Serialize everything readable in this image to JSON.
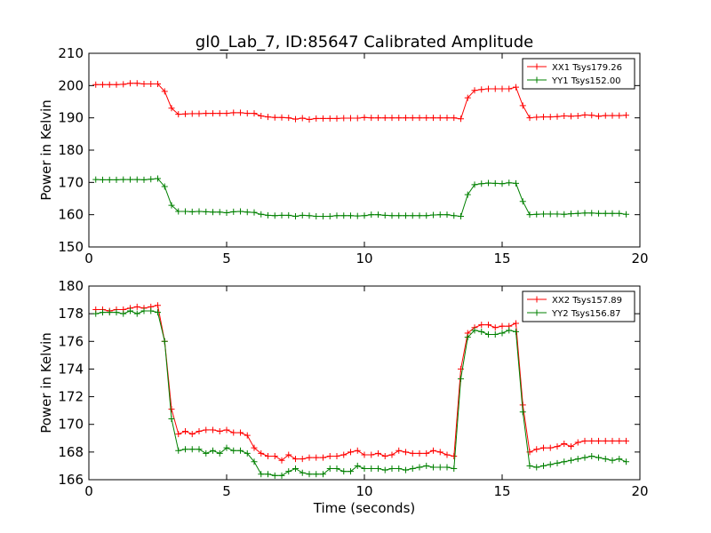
{
  "figure": {
    "title": "gl0_Lab_7, ID:85647 Calibrated Amplitude",
    "background": "#ffffff"
  },
  "chart_data": [
    {
      "type": "line",
      "ylabel": "Power in Kelvin",
      "xlabel": "",
      "xlim": [
        0,
        20
      ],
      "ylim": [
        150,
        210
      ],
      "xticks": [
        0,
        5,
        10,
        15,
        20
      ],
      "yticks": [
        150,
        160,
        170,
        180,
        190,
        200,
        210
      ],
      "x_tick_labels": [
        "0",
        "5",
        "10",
        "15",
        "20"
      ],
      "y_tick_labels": [
        "150",
        "160",
        "170",
        "180",
        "190",
        "200",
        "210"
      ],
      "grid": false,
      "legend_position": "top-right",
      "x": [
        0.25,
        0.5,
        0.75,
        1.0,
        1.25,
        1.5,
        1.75,
        2.0,
        2.25,
        2.5,
        2.75,
        3.0,
        3.25,
        3.5,
        3.75,
        4.0,
        4.25,
        4.5,
        4.75,
        5.0,
        5.25,
        5.5,
        5.75,
        6.0,
        6.25,
        6.5,
        6.75,
        7.0,
        7.25,
        7.5,
        7.75,
        8.0,
        8.25,
        8.5,
        8.75,
        9.0,
        9.25,
        9.5,
        9.75,
        10.0,
        10.25,
        10.5,
        10.75,
        11.0,
        11.25,
        11.5,
        11.75,
        12.0,
        12.25,
        12.5,
        12.75,
        13.0,
        13.25,
        13.5,
        13.75,
        14.0,
        14.25,
        14.5,
        14.75,
        15.0,
        15.25,
        15.5,
        15.75,
        16.0,
        16.25,
        16.5,
        16.75,
        17.0,
        17.25,
        17.5,
        17.75,
        18.0,
        18.25,
        18.5,
        18.75,
        19.0,
        19.25,
        19.5
      ],
      "series": [
        {
          "name": "XX1 Tsys179.26",
          "color": "#ff0000",
          "values": [
            200.3,
            200.3,
            200.3,
            200.3,
            200.4,
            200.7,
            200.7,
            200.5,
            200.5,
            200.5,
            198.2,
            193.0,
            191.1,
            191.2,
            191.3,
            191.3,
            191.4,
            191.4,
            191.4,
            191.4,
            191.6,
            191.6,
            191.4,
            191.4,
            190.6,
            190.3,
            190.1,
            190.1,
            190.0,
            189.6,
            189.9,
            189.5,
            189.8,
            189.8,
            189.8,
            189.8,
            189.9,
            189.9,
            189.9,
            190.1,
            190.0,
            190.0,
            190.0,
            190.0,
            190.0,
            190.0,
            190.0,
            190.0,
            190.0,
            190.0,
            190.0,
            190.0,
            190.0,
            189.7,
            196.2,
            198.5,
            198.8,
            199.0,
            199.0,
            199.0,
            199.0,
            199.5,
            193.8,
            190.0,
            190.2,
            190.3,
            190.3,
            190.4,
            190.6,
            190.5,
            190.6,
            190.9,
            190.8,
            190.5,
            190.7,
            190.7,
            190.7,
            190.8
          ]
        },
        {
          "name": "YY1 Tsys152.00",
          "color": "#008000",
          "values": [
            170.9,
            170.8,
            170.8,
            170.8,
            170.9,
            170.9,
            170.9,
            170.8,
            171.0,
            171.2,
            168.7,
            162.9,
            161.0,
            161.0,
            160.9,
            161.0,
            160.9,
            160.8,
            160.8,
            160.6,
            160.9,
            161.0,
            160.8,
            160.7,
            160.1,
            159.8,
            159.7,
            159.8,
            159.8,
            159.5,
            159.8,
            159.7,
            159.5,
            159.5,
            159.5,
            159.7,
            159.7,
            159.7,
            159.6,
            159.7,
            160.0,
            160.0,
            159.8,
            159.7,
            159.7,
            159.7,
            159.7,
            159.7,
            159.7,
            159.9,
            160.0,
            160.0,
            159.7,
            159.5,
            166.2,
            169.3,
            169.6,
            169.8,
            169.7,
            169.6,
            169.9,
            169.7,
            164.1,
            160.0,
            160.1,
            160.2,
            160.2,
            160.2,
            160.1,
            160.3,
            160.4,
            160.5,
            160.5,
            160.4,
            160.4,
            160.4,
            160.4,
            160.1
          ]
        }
      ]
    },
    {
      "type": "line",
      "ylabel": "Power in Kelvin",
      "xlabel": "Time (seconds)",
      "xlim": [
        0,
        20
      ],
      "ylim": [
        166,
        180
      ],
      "xticks": [
        0,
        5,
        10,
        15,
        20
      ],
      "yticks": [
        166,
        168,
        170,
        172,
        174,
        176,
        178,
        180
      ],
      "x_tick_labels": [
        "0",
        "5",
        "10",
        "15",
        "20"
      ],
      "y_tick_labels": [
        "166",
        "168",
        "170",
        "172",
        "174",
        "176",
        "178",
        "180"
      ],
      "grid": false,
      "legend_position": "top-right",
      "x": [
        0.25,
        0.5,
        0.75,
        1.0,
        1.25,
        1.5,
        1.75,
        2.0,
        2.25,
        2.5,
        2.75,
        3.0,
        3.25,
        3.5,
        3.75,
        4.0,
        4.25,
        4.5,
        4.75,
        5.0,
        5.25,
        5.5,
        5.75,
        6.0,
        6.25,
        6.5,
        6.75,
        7.0,
        7.25,
        7.5,
        7.75,
        8.0,
        8.25,
        8.5,
        8.75,
        9.0,
        9.25,
        9.5,
        9.75,
        10.0,
        10.25,
        10.5,
        10.75,
        11.0,
        11.25,
        11.5,
        11.75,
        12.0,
        12.25,
        12.5,
        12.75,
        13.0,
        13.25,
        13.5,
        13.75,
        14.0,
        14.25,
        14.5,
        14.75,
        15.0,
        15.25,
        15.5,
        15.75,
        16.0,
        16.25,
        16.5,
        16.75,
        17.0,
        17.25,
        17.5,
        17.75,
        18.0,
        18.25,
        18.5,
        18.75,
        19.0,
        19.25,
        19.5
      ],
      "series": [
        {
          "name": "XX2 Tsys157.89",
          "color": "#ff0000",
          "values": [
            178.3,
            178.3,
            178.2,
            178.3,
            178.3,
            178.4,
            178.5,
            178.4,
            178.5,
            178.6,
            176.0,
            171.1,
            169.3,
            169.5,
            169.3,
            169.5,
            169.6,
            169.6,
            169.5,
            169.6,
            169.4,
            169.4,
            169.2,
            168.3,
            167.9,
            167.7,
            167.7,
            167.4,
            167.8,
            167.5,
            167.5,
            167.6,
            167.6,
            167.6,
            167.7,
            167.7,
            167.8,
            168.0,
            168.1,
            167.8,
            167.8,
            167.9,
            167.7,
            167.8,
            168.1,
            168.0,
            167.9,
            167.9,
            167.9,
            168.1,
            168.0,
            167.8,
            167.7,
            174.0,
            176.6,
            177.0,
            177.2,
            177.2,
            177.0,
            177.1,
            177.1,
            177.3,
            171.4,
            168.0,
            168.2,
            168.3,
            168.3,
            168.4,
            168.6,
            168.4,
            168.7,
            168.8,
            168.8,
            168.8,
            168.8,
            168.8,
            168.8,
            168.8
          ]
        },
        {
          "name": "YY2 Tsys156.87",
          "color": "#008000",
          "values": [
            178.0,
            178.1,
            178.1,
            178.1,
            178.0,
            178.2,
            178.0,
            178.2,
            178.2,
            178.1,
            176.0,
            170.4,
            168.1,
            168.2,
            168.2,
            168.2,
            167.9,
            168.1,
            167.9,
            168.3,
            168.1,
            168.1,
            167.9,
            167.3,
            166.4,
            166.4,
            166.3,
            166.3,
            166.6,
            166.8,
            166.5,
            166.4,
            166.4,
            166.4,
            166.8,
            166.8,
            166.6,
            166.6,
            167.0,
            166.8,
            166.8,
            166.8,
            166.7,
            166.8,
            166.8,
            166.7,
            166.8,
            166.9,
            167.0,
            166.9,
            166.9,
            166.9,
            166.8,
            173.3,
            176.3,
            176.8,
            176.7,
            176.5,
            176.5,
            176.6,
            176.8,
            176.7,
            170.9,
            167.0,
            166.9,
            167.0,
            167.1,
            167.2,
            167.3,
            167.4,
            167.5,
            167.6,
            167.7,
            167.6,
            167.5,
            167.4,
            167.5,
            167.3
          ]
        }
      ]
    }
  ]
}
